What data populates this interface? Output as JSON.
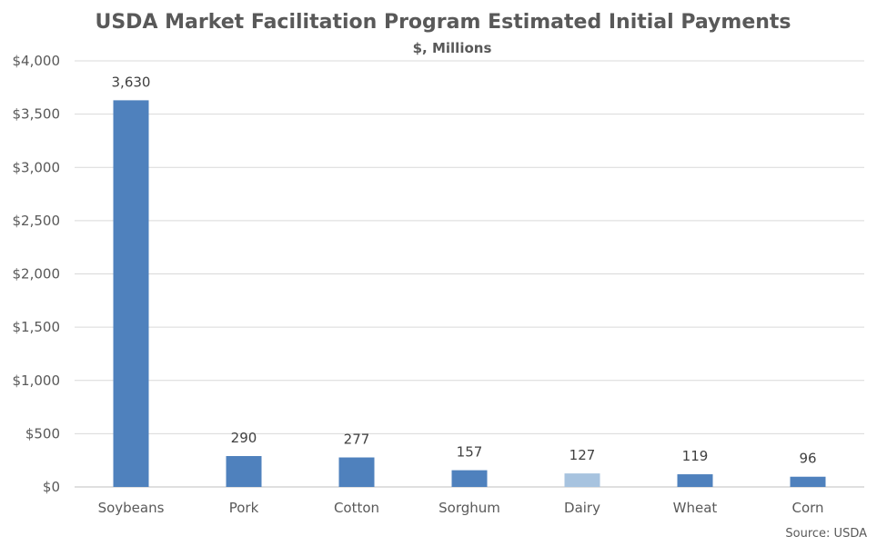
{
  "chart_data": {
    "type": "bar",
    "title": "USDA Market Facilitation Program Estimated Initial Payments",
    "subtitle": "$, Millions",
    "source": "Source: USDA",
    "categories": [
      "Soybeans",
      "Pork",
      "Cotton",
      "Sorghum",
      "Dairy",
      "Wheat",
      "Corn"
    ],
    "values": [
      3630,
      290,
      277,
      157,
      127,
      119,
      96
    ],
    "data_labels": [
      "3,630",
      "290",
      "277",
      "157",
      "127",
      "119",
      "96"
    ],
    "y_ticks": [
      0,
      500,
      1000,
      1500,
      2000,
      2500,
      3000,
      3500,
      4000
    ],
    "y_tick_labels": [
      "$0",
      "$500",
      "$1,000",
      "$1,500",
      "$2,000",
      "$2,500",
      "$3,000",
      "$3,500",
      "$4,000"
    ],
    "ylim": [
      0,
      4000
    ],
    "grid": true,
    "legend": "none",
    "xlabel": "",
    "ylabel": "",
    "colors": {
      "bar": "#4f81bd",
      "bar_highlight": "#a7c3df"
    },
    "highlight_index": 4
  }
}
